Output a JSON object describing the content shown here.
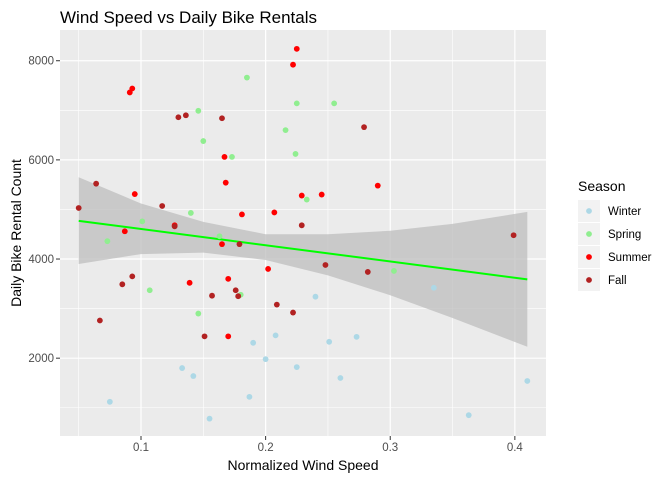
{
  "chart_data": {
    "type": "scatter",
    "title": "Wind Speed vs Daily Bike Rentals",
    "xlabel": "Normalized Wind Speed",
    "ylabel": "Daily Bike Rental Count",
    "xlim": [
      0.035,
      0.425
    ],
    "ylim": [
      430,
      8620
    ],
    "x_ticks": [
      0.1,
      0.2,
      0.3,
      0.4
    ],
    "x_tick_labels": [
      "0.1",
      "0.2",
      "0.3",
      "0.4"
    ],
    "y_ticks": [
      2000,
      4000,
      6000,
      8000
    ],
    "y_tick_labels": [
      "2000",
      "4000",
      "6000",
      "8000"
    ],
    "grid": true,
    "legend": {
      "title": "Season",
      "placement": "right",
      "entries": [
        "Winter",
        "Spring",
        "Summer",
        "Fall"
      ]
    },
    "colors": {
      "Winter": "#add8e6",
      "Spring": "#90ee90",
      "Summer": "#ff0000",
      "Fall": "#b22222",
      "trend": "#00ff00",
      "band": "#bebebe",
      "panel": "#ebebeb"
    },
    "series": [
      {
        "name": "Winter",
        "x": [
          0.075,
          0.133,
          0.142,
          0.155,
          0.187,
          0.19,
          0.2,
          0.208,
          0.225,
          0.24,
          0.251,
          0.26,
          0.273,
          0.335,
          0.363,
          0.41
        ],
        "y": [
          1120,
          1800,
          1640,
          780,
          1220,
          2310,
          1980,
          2460,
          1820,
          3240,
          2330,
          1600,
          2430,
          3420,
          850,
          1540
        ]
      },
      {
        "name": "Spring",
        "x": [
          0.073,
          0.101,
          0.107,
          0.14,
          0.146,
          0.146,
          0.15,
          0.163,
          0.173,
          0.18,
          0.185,
          0.216,
          0.224,
          0.225,
          0.233,
          0.255,
          0.303
        ],
        "y": [
          4360,
          4760,
          3370,
          4930,
          6990,
          2900,
          6380,
          4460,
          6060,
          3280,
          7660,
          6600,
          6120,
          7140,
          5200,
          7140,
          3760
        ]
      },
      {
        "name": "Summer",
        "x": [
          0.087,
          0.091,
          0.093,
          0.095,
          0.127,
          0.139,
          0.165,
          0.167,
          0.168,
          0.17,
          0.17,
          0.181,
          0.202,
          0.207,
          0.222,
          0.225,
          0.229,
          0.245,
          0.29
        ],
        "y": [
          4560,
          7360,
          7440,
          5310,
          4680,
          3520,
          4300,
          6060,
          5540,
          3600,
          2440,
          4900,
          3800,
          4940,
          7920,
          8240,
          5280,
          5300,
          5480
        ]
      },
      {
        "name": "Fall",
        "x": [
          0.05,
          0.064,
          0.067,
          0.085,
          0.093,
          0.117,
          0.127,
          0.13,
          0.136,
          0.151,
          0.157,
          0.165,
          0.176,
          0.178,
          0.179,
          0.209,
          0.222,
          0.229,
          0.248,
          0.279,
          0.282,
          0.399
        ],
        "y": [
          5030,
          5520,
          2760,
          3490,
          3650,
          5070,
          4660,
          6860,
          6900,
          2440,
          3260,
          6840,
          3370,
          3250,
          4300,
          3080,
          2920,
          4680,
          3880,
          6660,
          3740,
          4480
        ]
      }
    ],
    "trend": {
      "x": [
        0.05,
        0.41
      ],
      "y": [
        4770,
        3590
      ]
    },
    "confidence_band": {
      "x": [
        0.05,
        0.1,
        0.15,
        0.2,
        0.25,
        0.3,
        0.35,
        0.41
      ],
      "lower": [
        3900,
        4100,
        4130,
        3980,
        3670,
        3270,
        2810,
        2230
      ],
      "upper": [
        5650,
        5120,
        4750,
        4500,
        4500,
        4570,
        4710,
        4950
      ]
    }
  }
}
